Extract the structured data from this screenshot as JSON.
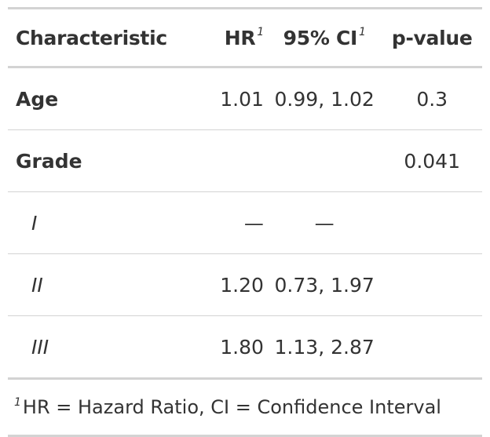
{
  "table": {
    "headers": {
      "characteristic": "Characteristic",
      "hr": "HR",
      "ci": "95% CI",
      "pvalue": "p-value",
      "footnote_mark": "1"
    },
    "rows": [
      {
        "label": "Age",
        "type": "variable",
        "hr": "1.01",
        "ci": "0.99, 1.02",
        "pvalue": "0.3"
      },
      {
        "label": "Grade",
        "type": "variable",
        "hr": "",
        "ci": "",
        "pvalue": "0.041"
      },
      {
        "label": "I",
        "type": "level",
        "hr": "—",
        "ci": "—",
        "pvalue": ""
      },
      {
        "label": "II",
        "type": "level",
        "hr": "1.20",
        "ci": "0.73, 1.97",
        "pvalue": ""
      },
      {
        "label": "III",
        "type": "level",
        "hr": "1.80",
        "ci": "1.13, 2.87",
        "pvalue": ""
      }
    ],
    "footnote": {
      "mark": "1",
      "text": "HR = Hazard Ratio, CI = Confidence Interval"
    }
  }
}
